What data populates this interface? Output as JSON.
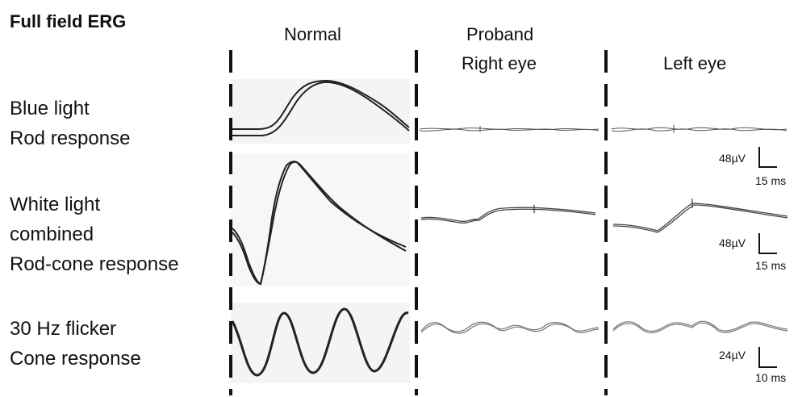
{
  "title": "Full field ERG",
  "columns": {
    "normal": "Normal",
    "proband": "Proband",
    "right_eye": "Right eye",
    "left_eye": "Left eye"
  },
  "rows": [
    {
      "line1": "Blue light",
      "line2": "Rod response",
      "line3": ""
    },
    {
      "line1": "White light",
      "line2": "combined",
      "line3": "Rod-cone response"
    },
    {
      "line1": "30 Hz flicker",
      "line2": "Cone response",
      "line3": ""
    }
  ],
  "scale_bars": [
    {
      "amplitude": "48µV",
      "time": "15 ms"
    },
    {
      "amplitude": "48µV",
      "time": "15 ms"
    },
    {
      "amplitude": "24µV",
      "time": "10 ms"
    }
  ]
}
